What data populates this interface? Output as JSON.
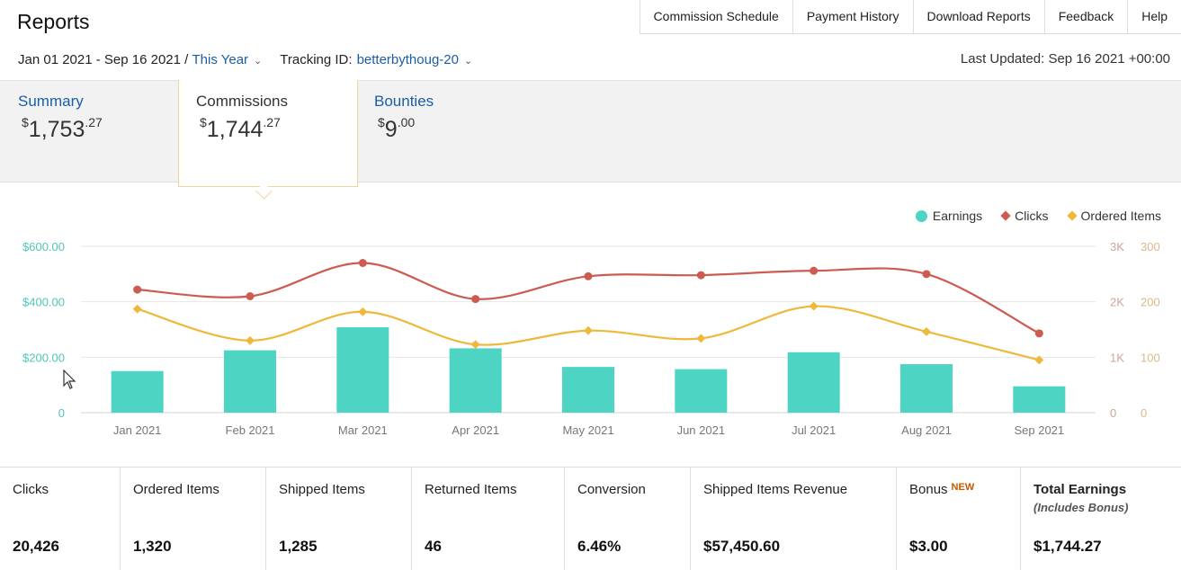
{
  "header": {
    "title": "Reports",
    "nav": [
      "Commission Schedule",
      "Payment History",
      "Download Reports",
      "Feedback",
      "Help"
    ],
    "date_range": "Jan 01 2021 - Sep 16 2021",
    "range_sep": " / ",
    "range_preset": "This Year",
    "tracking_label": "Tracking ID:",
    "tracking_id": "betterbythoug-20",
    "last_updated": "Last Updated: Sep 16 2021 +00:00"
  },
  "summary": {
    "summary": {
      "label": "Summary",
      "currency": "$",
      "whole": "1,753",
      "cents": ".27"
    },
    "commissions": {
      "label": "Commissions",
      "currency": "$",
      "whole": "1,744",
      "cents": ".27"
    },
    "bounties": {
      "label": "Bounties",
      "currency": "$",
      "whole": "9",
      "cents": ".00"
    }
  },
  "chart_data": {
    "type": "bar+line",
    "categories": [
      "Jan 2021",
      "Feb 2021",
      "Mar 2021",
      "Apr 2021",
      "May 2021",
      "Jun 2021",
      "Jul 2021",
      "Aug 2021",
      "Sep 2021"
    ],
    "series": [
      {
        "name": "Earnings",
        "type": "bar",
        "axis": "left",
        "color": "#4dd4c3",
        "values": [
          150,
          225,
          308,
          232,
          165,
          157,
          218,
          175,
          95
        ]
      },
      {
        "name": "Clicks",
        "type": "line",
        "axis": "right1",
        "color": "#cc5b52",
        "values": [
          2220,
          2100,
          2700,
          2050,
          2460,
          2480,
          2560,
          2500,
          1430
        ]
      },
      {
        "name": "Ordered Items",
        "type": "line",
        "axis": "right2",
        "color": "#eeb93a",
        "values": [
          187,
          130,
          182,
          123,
          148,
          134,
          192,
          146,
          95
        ]
      }
    ],
    "y_left": {
      "ticks": [
        "0",
        "$200.00",
        "$400.00",
        "$600.00"
      ],
      "range": [
        0,
        600
      ],
      "color": "#4fc7b6"
    },
    "y_right1": {
      "ticks": [
        "0",
        "1K",
        "2K",
        "3K"
      ],
      "range": [
        0,
        3000
      ],
      "color": "#c9a79a"
    },
    "y_right2": {
      "ticks": [
        "0",
        "100",
        "200",
        "300"
      ],
      "range": [
        0,
        300
      ],
      "color": "#d9b98a"
    },
    "legend": [
      "Earnings",
      "Clicks",
      "Ordered Items"
    ],
    "grid": true
  },
  "metrics": [
    {
      "label": "Clicks",
      "value": "20,426"
    },
    {
      "label": "Ordered Items",
      "value": "1,320"
    },
    {
      "label": "Shipped Items",
      "value": "1,285"
    },
    {
      "label": "Returned Items",
      "value": "46"
    },
    {
      "label": "Conversion",
      "value": "6.46%"
    },
    {
      "label": "Shipped Items Revenue",
      "value": "$57,450.60"
    },
    {
      "label": "Bonus",
      "badge": "NEW",
      "value": "$3.00"
    },
    {
      "label": "Total Earnings",
      "note": "(Includes Bonus)",
      "value": "$1,744.27"
    }
  ]
}
